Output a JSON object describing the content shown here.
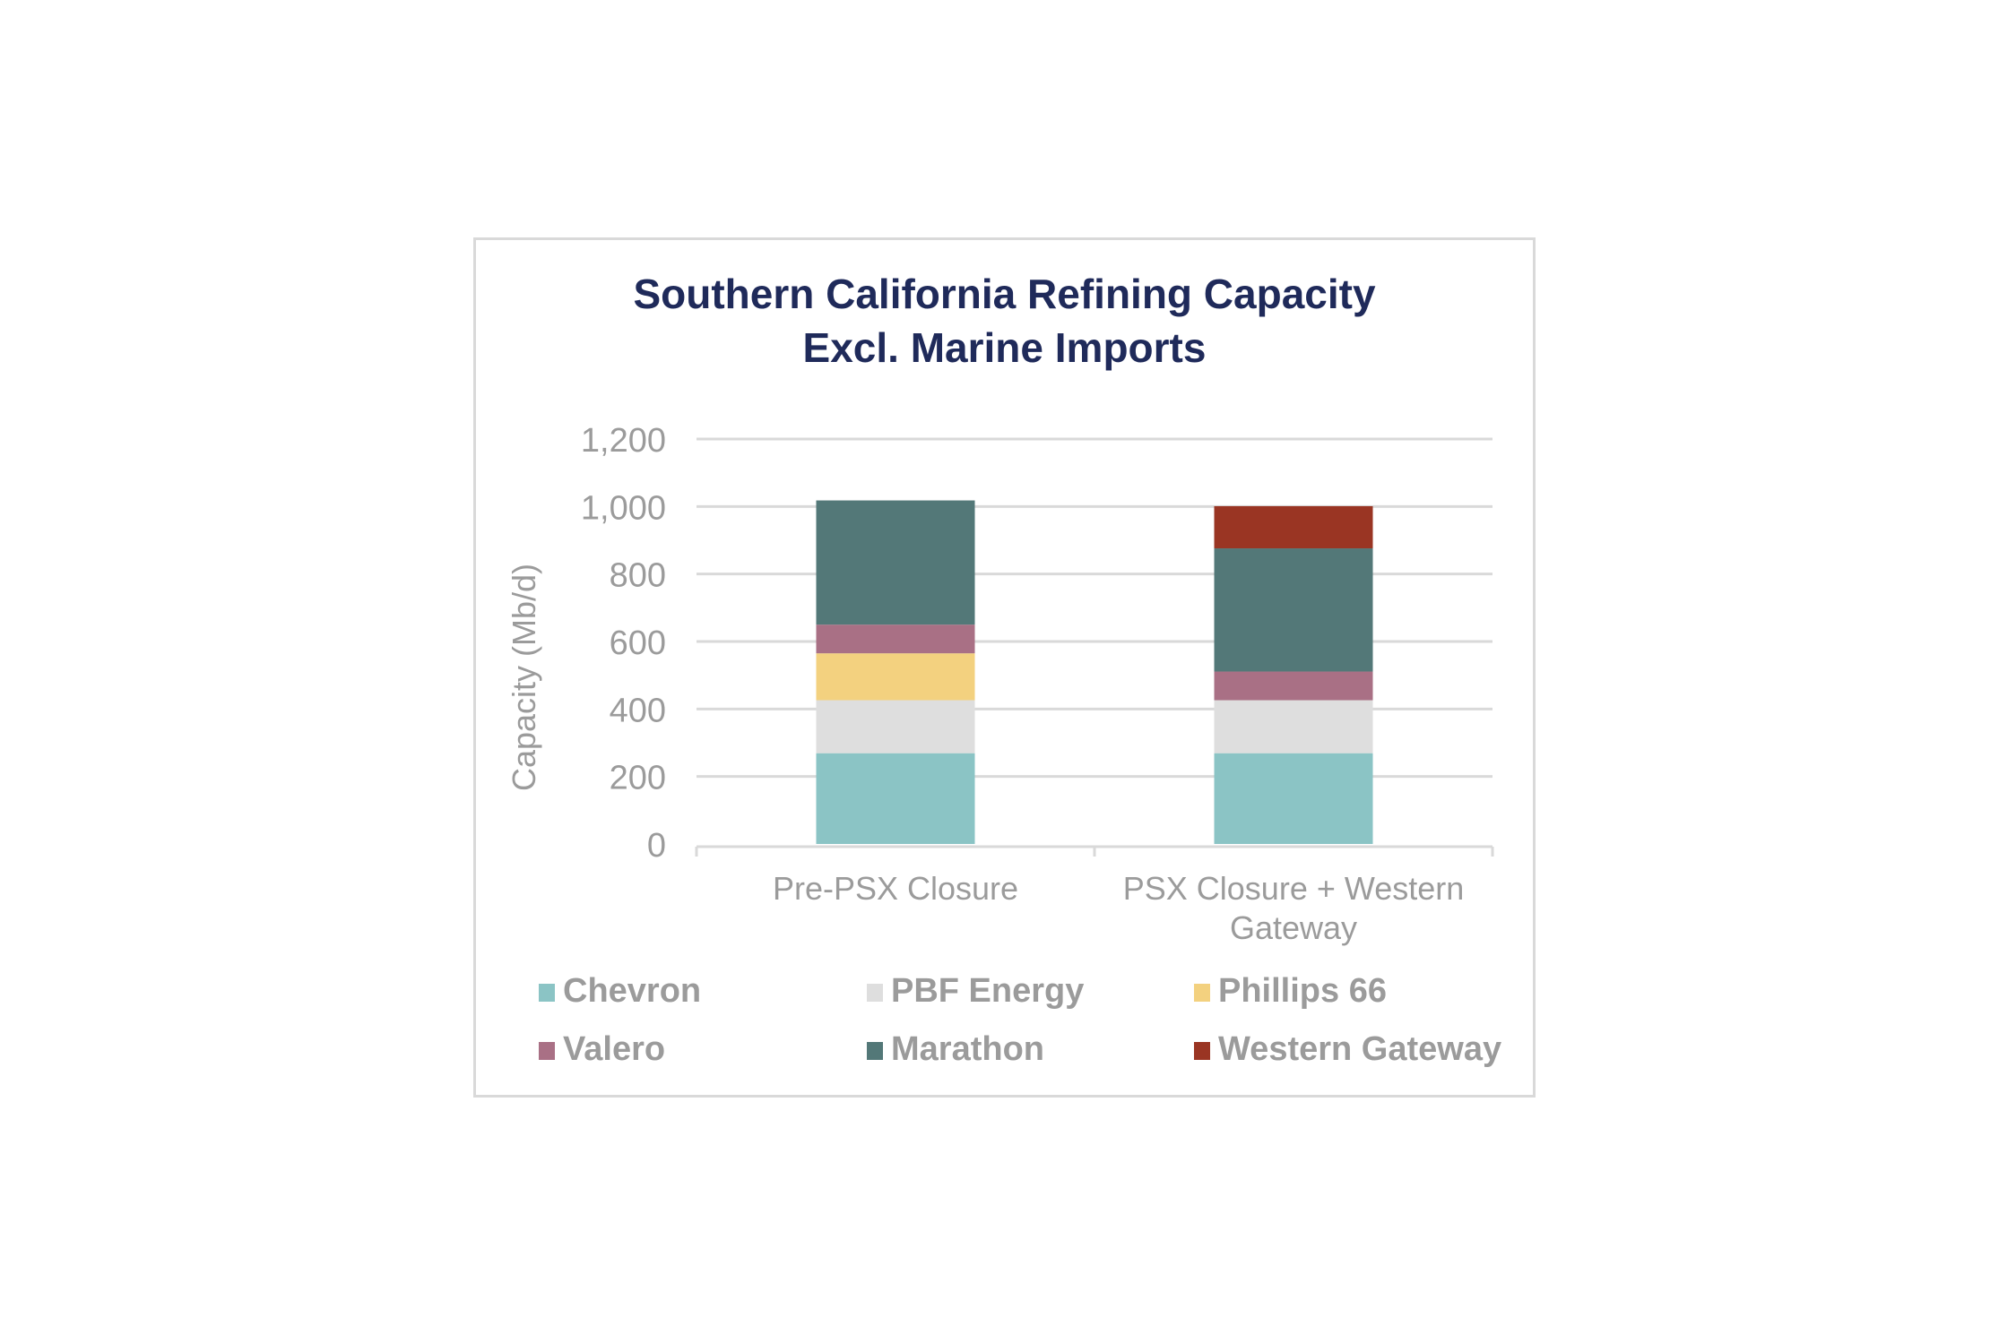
{
  "chart_data": {
    "type": "bar",
    "stacked": true,
    "title": [
      "Southern California Refining Capacity",
      "Excl. Marine Imports"
    ],
    "ylabel": "Capacity (Mb/d)",
    "xlabel": "",
    "ylim": [
      0,
      1200
    ],
    "yticks": [
      0,
      200,
      400,
      600,
      800,
      "1,000",
      "1,200"
    ],
    "ytick_values": [
      0,
      200,
      400,
      600,
      800,
      1000,
      1200
    ],
    "categories": [
      [
        "Pre-PSX Closure"
      ],
      [
        "PSX Closure + Western",
        "Gateway"
      ]
    ],
    "grid": true,
    "legend_position": "bottom",
    "series": [
      {
        "name": "Chevron",
        "color": "#8bc4c5",
        "values": [
          269,
          269
        ]
      },
      {
        "name": "PBF Energy",
        "color": "#dedede",
        "values": [
          157,
          157
        ]
      },
      {
        "name": "Phillips 66",
        "color": "#f3d17f",
        "values": [
          139,
          0
        ]
      },
      {
        "name": "Valero",
        "color": "#a97085",
        "values": [
          85,
          85
        ]
      },
      {
        "name": "Marathon",
        "color": "#537878",
        "values": [
          368,
          365
        ]
      },
      {
        "name": "Western Gateway",
        "color": "#9a3523",
        "values": [
          0,
          125
        ]
      }
    ]
  }
}
